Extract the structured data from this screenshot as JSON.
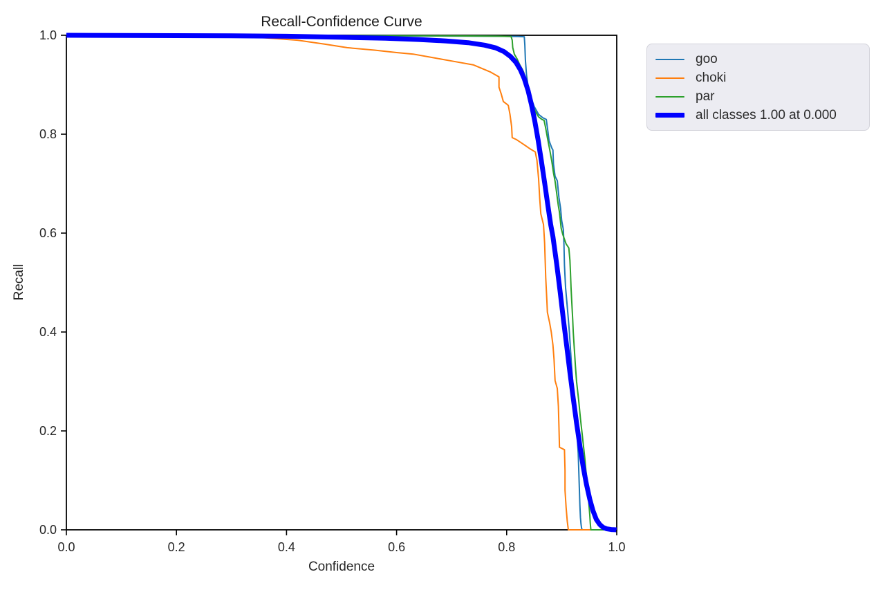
{
  "figure": {
    "title": "Recall-Confidence Curve",
    "xlabel": "Confidence",
    "ylabel": "Recall"
  },
  "colors": {
    "background": "#ffffff",
    "axis": "#000000",
    "text": "#262626",
    "legend_background": "#ececf2",
    "legend_border": "#d2d2da"
  },
  "chart_data": {
    "type": "line",
    "title": "Recall-Confidence Curve",
    "xlabel": "Confidence",
    "ylabel": "Recall",
    "xlim": [
      0.0,
      1.0
    ],
    "ylim": [
      0.0,
      1.0
    ],
    "xticks": [
      0.0,
      0.2,
      0.4,
      0.6,
      0.8,
      1.0
    ],
    "yticks": [
      0.0,
      0.2,
      0.4,
      0.6,
      0.8,
      1.0
    ],
    "grid": false,
    "legend": {
      "position": "outside-upper-right",
      "entries": [
        "goo",
        "choki",
        "par",
        "all classes 1.00 at 0.000"
      ]
    },
    "series": [
      {
        "name": "goo",
        "color": "#1f77b4",
        "linewidth": 2,
        "points": [
          [
            0,
            1
          ],
          [
            0.2,
            1
          ],
          [
            0.4,
            0.9995
          ],
          [
            0.6,
            0.999
          ],
          [
            0.7,
            0.9985
          ],
          [
            0.78,
            0.998
          ],
          [
            0.82,
            0.9975
          ],
          [
            0.832,
            0.997
          ],
          [
            0.833,
            0.98
          ],
          [
            0.834,
            0.95
          ],
          [
            0.836,
            0.92
          ],
          [
            0.839,
            0.897
          ],
          [
            0.843,
            0.878
          ],
          [
            0.85,
            0.856
          ],
          [
            0.858,
            0.84
          ],
          [
            0.866,
            0.833
          ],
          [
            0.872,
            0.83
          ],
          [
            0.875,
            0.805
          ],
          [
            0.877,
            0.787
          ],
          [
            0.882,
            0.772
          ],
          [
            0.884,
            0.768
          ],
          [
            0.885,
            0.74
          ],
          [
            0.888,
            0.715
          ],
          [
            0.892,
            0.706
          ],
          [
            0.895,
            0.672
          ],
          [
            0.898,
            0.65
          ],
          [
            0.9,
            0.625
          ],
          [
            0.903,
            0.607
          ],
          [
            0.904,
            0.58
          ],
          [
            0.905,
            0.535
          ],
          [
            0.907,
            0.49
          ],
          [
            0.91,
            0.452
          ],
          [
            0.912,
            0.426
          ],
          [
            0.914,
            0.4
          ],
          [
            0.916,
            0.365
          ],
          [
            0.918,
            0.33
          ],
          [
            0.92,
            0.3
          ],
          [
            0.922,
            0.278
          ],
          [
            0.924,
            0.26
          ],
          [
            0.925,
            0.235
          ],
          [
            0.927,
            0.21
          ],
          [
            0.928,
            0.19
          ],
          [
            0.93,
            0.155
          ],
          [
            0.931,
            0.12
          ],
          [
            0.932,
            0.085
          ],
          [
            0.933,
            0.05
          ],
          [
            0.934,
            0.025
          ],
          [
            0.935,
            0.012
          ],
          [
            0.936,
            0.004
          ],
          [
            0.937,
            0
          ],
          [
            1.0,
            0
          ]
        ]
      },
      {
        "name": "choki",
        "color": "#ff7f0e",
        "linewidth": 2,
        "points": [
          [
            0,
            1
          ],
          [
            0.15,
            0.9995
          ],
          [
            0.3,
            0.998
          ],
          [
            0.36,
            0.995
          ],
          [
            0.42,
            0.99
          ],
          [
            0.47,
            0.982
          ],
          [
            0.51,
            0.975
          ],
          [
            0.56,
            0.97
          ],
          [
            0.6,
            0.965
          ],
          [
            0.63,
            0.962
          ],
          [
            0.67,
            0.954
          ],
          [
            0.7,
            0.948
          ],
          [
            0.74,
            0.94
          ],
          [
            0.77,
            0.926
          ],
          [
            0.781,
            0.919
          ],
          [
            0.786,
            0.916
          ],
          [
            0.786,
            0.895
          ],
          [
            0.79,
            0.882
          ],
          [
            0.794,
            0.866
          ],
          [
            0.8,
            0.861
          ],
          [
            0.803,
            0.858
          ],
          [
            0.806,
            0.84
          ],
          [
            0.809,
            0.815
          ],
          [
            0.81,
            0.793
          ],
          [
            0.818,
            0.789
          ],
          [
            0.83,
            0.78
          ],
          [
            0.843,
            0.77
          ],
          [
            0.852,
            0.764
          ],
          [
            0.855,
            0.747
          ],
          [
            0.858,
            0.71
          ],
          [
            0.86,
            0.67
          ],
          [
            0.862,
            0.639
          ],
          [
            0.867,
            0.617
          ],
          [
            0.869,
            0.58
          ],
          [
            0.87,
            0.545
          ],
          [
            0.871,
            0.51
          ],
          [
            0.873,
            0.465
          ],
          [
            0.874,
            0.44
          ],
          [
            0.878,
            0.419
          ],
          [
            0.881,
            0.4
          ],
          [
            0.884,
            0.374
          ],
          [
            0.886,
            0.345
          ],
          [
            0.888,
            0.302
          ],
          [
            0.892,
            0.286
          ],
          [
            0.894,
            0.25
          ],
          [
            0.895,
            0.21
          ],
          [
            0.896,
            0.167
          ],
          [
            0.905,
            0.162
          ],
          [
            0.906,
            0.12
          ],
          [
            0.906,
            0.08
          ],
          [
            0.908,
            0.045
          ],
          [
            0.91,
            0.018
          ],
          [
            0.912,
            0
          ],
          [
            1.0,
            0
          ]
        ]
      },
      {
        "name": "par",
        "color": "#2ca02c",
        "linewidth": 2,
        "points": [
          [
            0,
            1
          ],
          [
            0.2,
            1
          ],
          [
            0.45,
            0.9995
          ],
          [
            0.65,
            0.999
          ],
          [
            0.75,
            0.9985
          ],
          [
            0.79,
            0.998
          ],
          [
            0.808,
            0.9975
          ],
          [
            0.81,
            0.99
          ],
          [
            0.811,
            0.975
          ],
          [
            0.814,
            0.962
          ],
          [
            0.819,
            0.952
          ],
          [
            0.824,
            0.94
          ],
          [
            0.828,
            0.932
          ],
          [
            0.831,
            0.925
          ],
          [
            0.834,
            0.907
          ],
          [
            0.837,
            0.895
          ],
          [
            0.84,
            0.88
          ],
          [
            0.846,
            0.862
          ],
          [
            0.852,
            0.846
          ],
          [
            0.858,
            0.835
          ],
          [
            0.864,
            0.83
          ],
          [
            0.868,
            0.828
          ],
          [
            0.871,
            0.812
          ],
          [
            0.874,
            0.793
          ],
          [
            0.878,
            0.77
          ],
          [
            0.882,
            0.745
          ],
          [
            0.885,
            0.722
          ],
          [
            0.888,
            0.705
          ],
          [
            0.891,
            0.68
          ],
          [
            0.894,
            0.655
          ],
          [
            0.896,
            0.642
          ],
          [
            0.899,
            0.61
          ],
          [
            0.902,
            0.597
          ],
          [
            0.908,
            0.578
          ],
          [
            0.913,
            0.57
          ],
          [
            0.915,
            0.545
          ],
          [
            0.916,
            0.52
          ],
          [
            0.917,
            0.49
          ],
          [
            0.918,
            0.468
          ],
          [
            0.92,
            0.426
          ],
          [
            0.921,
            0.4
          ],
          [
            0.923,
            0.365
          ],
          [
            0.925,
            0.33
          ],
          [
            0.927,
            0.3
          ],
          [
            0.929,
            0.28
          ],
          [
            0.931,
            0.26
          ],
          [
            0.934,
            0.225
          ],
          [
            0.937,
            0.195
          ],
          [
            0.939,
            0.176
          ],
          [
            0.942,
            0.145
          ],
          [
            0.944,
            0.12
          ],
          [
            0.947,
            0.089
          ],
          [
            0.949,
            0.058
          ],
          [
            0.951,
            0.03
          ],
          [
            0.952,
            0.012
          ],
          [
            0.953,
            0
          ],
          [
            1.0,
            0
          ]
        ]
      },
      {
        "name": "all classes 1.00 at 0.000",
        "color": "#0000ff",
        "linewidth": 7,
        "points": [
          [
            0,
            1
          ],
          [
            0.15,
            0.9995
          ],
          [
            0.3,
            0.999
          ],
          [
            0.4,
            0.998
          ],
          [
            0.5,
            0.996
          ],
          [
            0.58,
            0.994
          ],
          [
            0.64,
            0.9915
          ],
          [
            0.69,
            0.9885
          ],
          [
            0.73,
            0.985
          ],
          [
            0.76,
            0.98
          ],
          [
            0.78,
            0.9745
          ],
          [
            0.795,
            0.967
          ],
          [
            0.807,
            0.957
          ],
          [
            0.817,
            0.945
          ],
          [
            0.825,
            0.93
          ],
          [
            0.832,
            0.912
          ],
          [
            0.839,
            0.888
          ],
          [
            0.845,
            0.86
          ],
          [
            0.851,
            0.827
          ],
          [
            0.857,
            0.789
          ],
          [
            0.863,
            0.747
          ],
          [
            0.869,
            0.702
          ],
          [
            0.875,
            0.655
          ],
          [
            0.88,
            0.617
          ],
          [
            0.884,
            0.593
          ],
          [
            0.891,
            0.537
          ],
          [
            0.897,
            0.483
          ],
          [
            0.903,
            0.426
          ],
          [
            0.909,
            0.372
          ],
          [
            0.915,
            0.318
          ],
          [
            0.921,
            0.266
          ],
          [
            0.927,
            0.216
          ],
          [
            0.933,
            0.17
          ],
          [
            0.939,
            0.128
          ],
          [
            0.945,
            0.092
          ],
          [
            0.951,
            0.062
          ],
          [
            0.957,
            0.038
          ],
          [
            0.963,
            0.021
          ],
          [
            0.969,
            0.011
          ],
          [
            0.975,
            0.005
          ],
          [
            0.982,
            0.002
          ],
          [
            0.99,
            0.0005
          ],
          [
            1.0,
            0
          ]
        ]
      }
    ]
  }
}
